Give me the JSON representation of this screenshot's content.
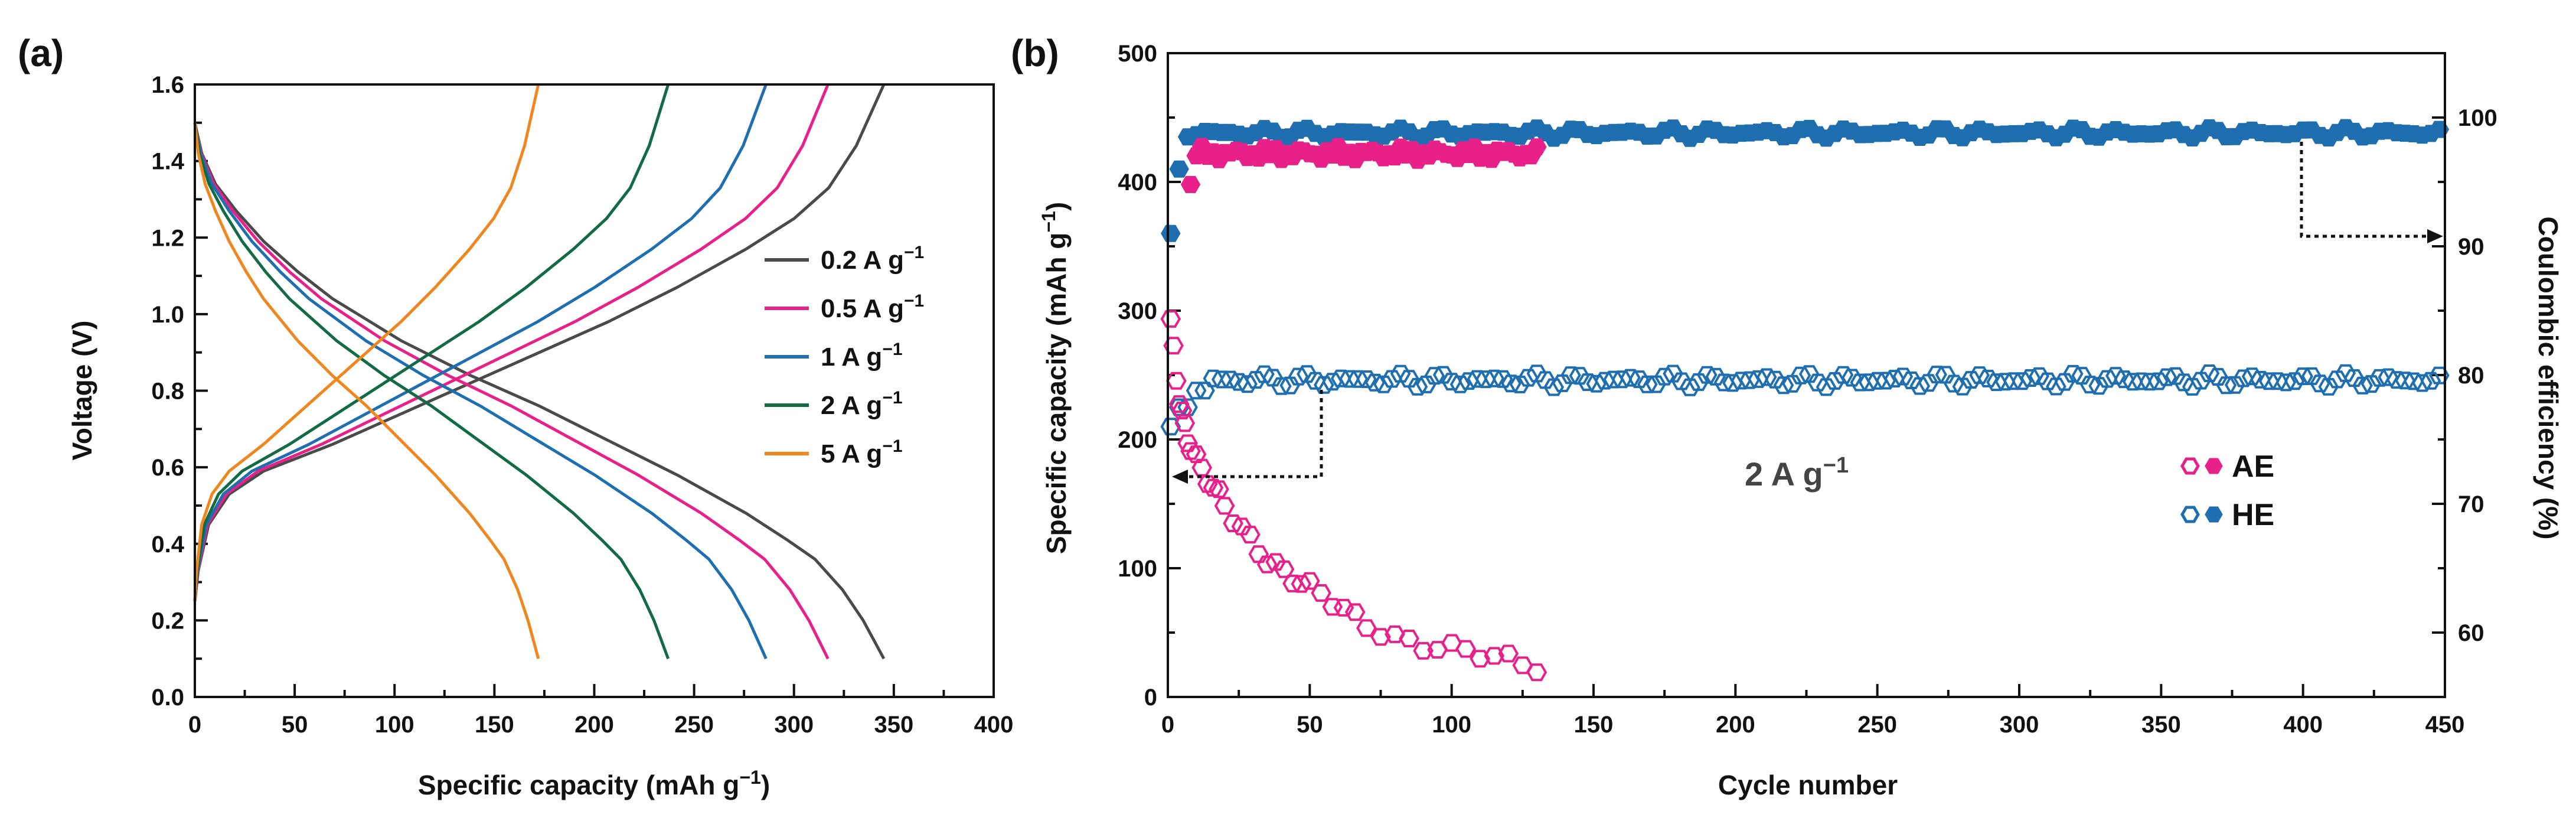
{
  "chart_data": [
    {
      "panel": "(a)",
      "type": "line",
      "xlabel": "Specific capacity (mAh g",
      "xlabel_sup": "−1",
      "xlabel_end": ")",
      "ylabel": "Voltage (V)",
      "xlim": [
        0,
        400
      ],
      "ylim": [
        0,
        1.6
      ],
      "xticks": [
        "0",
        "50",
        "100",
        "150",
        "200",
        "250",
        "300",
        "350",
        "400"
      ],
      "yticks": [
        "0.0",
        "0.2",
        "0.4",
        "0.6",
        "0.8",
        "1.0",
        "1.2",
        "1.4",
        "1.6"
      ],
      "legend_position": "center-right",
      "series": [
        {
          "name": "0.2 A g",
          "sup": "−1",
          "color": "#4a4a4a",
          "capacity": 345
        },
        {
          "name": "0.5 A g",
          "sup": "−1",
          "color": "#e8208a",
          "capacity": 317
        },
        {
          "name": "1 A g",
          "sup": "−1",
          "color": "#1f6fb0",
          "capacity": 286
        },
        {
          "name": "2 A g",
          "sup": "−1",
          "color": "#136b45",
          "capacity": 237
        },
        {
          "name": "5 A g",
          "sup": "−1",
          "color": "#f0861e",
          "capacity": 172
        }
      ],
      "discharge_profile": [
        [
          0,
          1.5
        ],
        [
          0.01,
          1.42
        ],
        [
          0.03,
          1.34
        ],
        [
          0.06,
          1.27
        ],
        [
          0.1,
          1.19
        ],
        [
          0.15,
          1.11
        ],
        [
          0.2,
          1.04
        ],
        [
          0.3,
          0.93
        ],
        [
          0.4,
          0.84
        ],
        [
          0.5,
          0.76
        ],
        [
          0.6,
          0.67
        ],
        [
          0.7,
          0.58
        ],
        [
          0.8,
          0.48
        ],
        [
          0.86,
          0.41
        ],
        [
          0.9,
          0.36
        ],
        [
          0.94,
          0.28
        ],
        [
          0.97,
          0.2
        ],
        [
          1.0,
          0.1
        ]
      ],
      "charge_profile": [
        [
          0,
          0.25
        ],
        [
          0.005,
          0.33
        ],
        [
          0.02,
          0.45
        ],
        [
          0.05,
          0.53
        ],
        [
          0.1,
          0.59
        ],
        [
          0.2,
          0.66
        ],
        [
          0.3,
          0.74
        ],
        [
          0.4,
          0.82
        ],
        [
          0.5,
          0.9
        ],
        [
          0.6,
          0.98
        ],
        [
          0.7,
          1.07
        ],
        [
          0.8,
          1.17
        ],
        [
          0.87,
          1.25
        ],
        [
          0.92,
          1.33
        ],
        [
          0.96,
          1.44
        ],
        [
          1.0,
          1.6
        ]
      ]
    },
    {
      "panel": "(b)",
      "type": "scatter",
      "xlabel": "Cycle number",
      "ylabel": "Specific capacity (mAh g",
      "ylabel_sup": "−1",
      "ylabel_end": ")",
      "y2label": "Coulombic efficiency (%)",
      "xlim": [
        0,
        450
      ],
      "ylim": [
        0,
        500
      ],
      "y2lim": [
        55,
        105
      ],
      "xticks": [
        "0",
        "50",
        "100",
        "150",
        "200",
        "250",
        "300",
        "350",
        "400",
        "450"
      ],
      "yticks": [
        "0",
        "100",
        "200",
        "300",
        "400",
        "500"
      ],
      "y2ticks": [
        "60",
        "70",
        "80",
        "90",
        "100"
      ],
      "annotation": "2 A g",
      "annotation_sup": "−1",
      "legend": [
        {
          "name": "AE",
          "color": "#e8208a"
        },
        {
          "name": "HE",
          "color": "#1f6fb0"
        }
      ],
      "AE_capacity": [
        [
          1,
          290
        ],
        [
          2,
          265
        ],
        [
          3,
          245
        ],
        [
          4,
          232
        ],
        [
          5,
          222
        ],
        [
          6,
          212
        ],
        [
          7,
          204
        ],
        [
          8,
          197
        ],
        [
          10,
          186
        ],
        [
          12,
          176
        ],
        [
          14,
          168
        ],
        [
          16,
          160
        ],
        [
          18,
          153
        ],
        [
          20,
          146
        ],
        [
          23,
          138
        ],
        [
          26,
          131
        ],
        [
          29,
          124
        ],
        [
          32,
          117
        ],
        [
          35,
          110
        ],
        [
          38,
          104
        ],
        [
          41,
          98
        ],
        [
          44,
          92
        ],
        [
          47,
          87
        ],
        [
          50,
          82
        ],
        [
          54,
          77
        ],
        [
          58,
          72
        ],
        [
          62,
          67
        ],
        [
          66,
          62
        ],
        [
          70,
          58
        ],
        [
          75,
          54
        ],
        [
          80,
          49
        ],
        [
          85,
          45
        ],
        [
          90,
          41
        ],
        [
          95,
          38
        ],
        [
          100,
          35
        ],
        [
          105,
          33
        ],
        [
          110,
          31
        ],
        [
          115,
          29
        ],
        [
          120,
          28
        ],
        [
          125,
          27
        ],
        [
          130,
          26
        ]
      ],
      "AE_efficiency_range": [
        8,
        130
      ],
      "AE_efficiency_plateau": 97.2,
      "HE_capacity_plateau": 246,
      "HE_efficiency_plateau": 98.8,
      "HE_range": [
        1,
        450
      ]
    }
  ]
}
